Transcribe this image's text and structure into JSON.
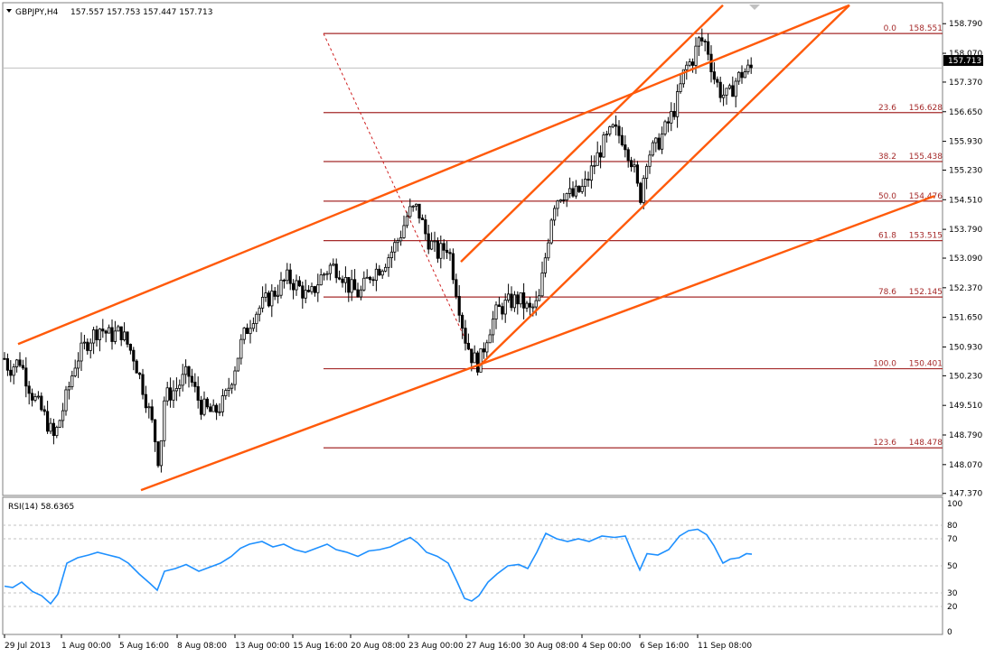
{
  "header": {
    "symbol": "GBPJPY,H4",
    "ohlc": "157.557 157.753 157.447 157.713"
  },
  "chart_data": [
    {
      "type": "candlestick",
      "title": "GBPJPY,H4 157.557 157.753 157.447 157.713",
      "price_scale": [
        "158.790",
        "158.070",
        "157.370",
        "156.650",
        "155.930",
        "155.230",
        "154.510",
        "153.790",
        "153.090",
        "152.370",
        "151.650",
        "150.930",
        "150.230",
        "149.510",
        "148.790",
        "148.070",
        "147.370"
      ],
      "current_price": "157.713",
      "ylim": [
        147.32,
        159.3
      ],
      "x_labels": [
        "29 Jul 2013",
        "1 Aug 00:00",
        "5 Aug 16:00",
        "8 Aug 08:00",
        "13 Aug 00:00",
        "15 Aug 16:00",
        "20 Aug 08:00",
        "23 Aug 00:00",
        "27 Aug 16:00",
        "30 Aug 08:00",
        "4 Sep 00:00",
        "6 Sep 16:00",
        "11 Sep 08:00"
      ],
      "price_path": [
        [
          0,
          150.9
        ],
        [
          10,
          150.4
        ],
        [
          22,
          150.6
        ],
        [
          35,
          149.8
        ],
        [
          48,
          149.3
        ],
        [
          60,
          148.7
        ],
        [
          72,
          149.6
        ],
        [
          84,
          150.6
        ],
        [
          98,
          151.1
        ],
        [
          110,
          151.4
        ],
        [
          122,
          151.2
        ],
        [
          134,
          151.3
        ],
        [
          148,
          150.7
        ],
        [
          160,
          149.8
        ],
        [
          170,
          148.9
        ],
        [
          176,
          148.1
        ],
        [
          182,
          149.7
        ],
        [
          194,
          149.9
        ],
        [
          208,
          150.3
        ],
        [
          222,
          149.5
        ],
        [
          236,
          149.3
        ],
        [
          248,
          149.6
        ],
        [
          258,
          150.3
        ],
        [
          268,
          151.1
        ],
        [
          280,
          151.7
        ],
        [
          292,
          152.0
        ],
        [
          306,
          152.3
        ],
        [
          318,
          152.6
        ],
        [
          330,
          152.4
        ],
        [
          342,
          152.1
        ],
        [
          354,
          152.6
        ],
        [
          366,
          152.9
        ],
        [
          376,
          152.8
        ],
        [
          386,
          152.4
        ],
        [
          398,
          152.2
        ],
        [
          410,
          152.7
        ],
        [
          422,
          152.9
        ],
        [
          432,
          153.2
        ],
        [
          442,
          153.6
        ],
        [
          452,
          154.2
        ],
        [
          462,
          154.3
        ],
        [
          472,
          153.6
        ],
        [
          484,
          153.2
        ],
        [
          496,
          153.4
        ],
        [
          506,
          152.2
        ],
        [
          514,
          151.2
        ],
        [
          522,
          150.7
        ],
        [
          530,
          150.5
        ],
        [
          540,
          151.3
        ],
        [
          550,
          151.8
        ],
        [
          562,
          152.0
        ],
        [
          574,
          152.1
        ],
        [
          586,
          151.8
        ],
        [
          596,
          152.0
        ],
        [
          604,
          153.2
        ],
        [
          612,
          154.4
        ],
        [
          622,
          154.7
        ],
        [
          634,
          154.6
        ],
        [
          646,
          154.8
        ],
        [
          656,
          155.3
        ],
        [
          666,
          155.8
        ],
        [
          678,
          156.2
        ],
        [
          690,
          156.0
        ],
        [
          700,
          155.4
        ],
        [
          708,
          154.5
        ],
        [
          716,
          155.6
        ],
        [
          726,
          155.8
        ],
        [
          738,
          156.3
        ],
        [
          748,
          156.8
        ],
        [
          758,
          157.7
        ],
        [
          766,
          157.9
        ],
        [
          774,
          158.4
        ],
        [
          782,
          158.3
        ],
        [
          790,
          157.5
        ],
        [
          798,
          157.1
        ],
        [
          806,
          157.0
        ],
        [
          814,
          157.4
        ],
        [
          822,
          157.6
        ],
        [
          832,
          157.71
        ]
      ],
      "fibonacci": [
        {
          "level": "0.0",
          "price": "158.551",
          "value": 158.551
        },
        {
          "level": "23.6",
          "price": "156.628",
          "value": 156.628
        },
        {
          "level": "38.2",
          "price": "155.438",
          "value": 155.438
        },
        {
          "level": "50.0",
          "price": "154.476",
          "value": 154.476
        },
        {
          "level": "61.8",
          "price": "153.515",
          "value": 153.515
        },
        {
          "level": "78.6",
          "price": "152.145",
          "value": 152.145
        },
        {
          "level": "100.0",
          "price": "150.401",
          "value": 150.401
        },
        {
          "level": "123.6",
          "price": "148.478",
          "value": 148.478
        }
      ],
      "trendlines": [
        {
          "x1": 20,
          "p1": 151.0,
          "x2": 940,
          "p2": 159.24
        },
        {
          "x1": 156,
          "p1": 147.45,
          "x2": 1034,
          "p2": 154.6
        },
        {
          "x1": 510,
          "p1": 153.0,
          "x2": 800,
          "p2": 159.24
        },
        {
          "x1": 530,
          "p1": 150.46,
          "x2": 940,
          "p2": 159.24
        }
      ],
      "fib_connector": {
        "x1": 358,
        "p1": 158.551,
        "x2": 530,
        "p2": 150.401
      },
      "colors": {
        "candle": "#000000",
        "fib": "#a52a2a",
        "trend": "#ff5a0a",
        "rsi": "#1e90ff",
        "grid": "#c0c0c0"
      }
    },
    {
      "type": "line",
      "title": "RSI(14) 58.6365",
      "series": [
        {
          "name": "RSI(14)",
          "color": "#1e90ff"
        }
      ],
      "ylim": [
        0,
        100
      ],
      "levels": [
        "100",
        "80",
        "70",
        "50",
        "30",
        "20",
        "0"
      ],
      "level_values": [
        100,
        80,
        70,
        50,
        30,
        20,
        0
      ],
      "points": [
        [
          5,
          35
        ],
        [
          14,
          34
        ],
        [
          24,
          38
        ],
        [
          36,
          31
        ],
        [
          46,
          28
        ],
        [
          56,
          22
        ],
        [
          64,
          29
        ],
        [
          74,
          52
        ],
        [
          86,
          56
        ],
        [
          98,
          58
        ],
        [
          108,
          60
        ],
        [
          120,
          58
        ],
        [
          132,
          56
        ],
        [
          142,
          52
        ],
        [
          154,
          44
        ],
        [
          166,
          37
        ],
        [
          174,
          32
        ],
        [
          182,
          46
        ],
        [
          194,
          48
        ],
        [
          206,
          51
        ],
        [
          220,
          46
        ],
        [
          232,
          49
        ],
        [
          244,
          52
        ],
        [
          256,
          57
        ],
        [
          266,
          63
        ],
        [
          276,
          66
        ],
        [
          290,
          68
        ],
        [
          302,
          64
        ],
        [
          314,
          66
        ],
        [
          326,
          62
        ],
        [
          338,
          60
        ],
        [
          350,
          63
        ],
        [
          362,
          66
        ],
        [
          372,
          62
        ],
        [
          384,
          60
        ],
        [
          396,
          57
        ],
        [
          408,
          61
        ],
        [
          420,
          62
        ],
        [
          432,
          64
        ],
        [
          444,
          68
        ],
        [
          454,
          71
        ],
        [
          462,
          67
        ],
        [
          472,
          60
        ],
        [
          484,
          57
        ],
        [
          496,
          52
        ],
        [
          506,
          38
        ],
        [
          514,
          26
        ],
        [
          522,
          24
        ],
        [
          530,
          28
        ],
        [
          540,
          38
        ],
        [
          550,
          44
        ],
        [
          562,
          50
        ],
        [
          574,
          51
        ],
        [
          584,
          48
        ],
        [
          594,
          60
        ],
        [
          604,
          74
        ],
        [
          616,
          70
        ],
        [
          628,
          68
        ],
        [
          640,
          70
        ],
        [
          652,
          68
        ],
        [
          666,
          72
        ],
        [
          680,
          71
        ],
        [
          692,
          72
        ],
        [
          702,
          56
        ],
        [
          708,
          47
        ],
        [
          716,
          59
        ],
        [
          728,
          58
        ],
        [
          740,
          62
        ],
        [
          752,
          72
        ],
        [
          762,
          76
        ],
        [
          772,
          77
        ],
        [
          782,
          73
        ],
        [
          790,
          65
        ],
        [
          800,
          52
        ],
        [
          808,
          55
        ],
        [
          818,
          56
        ],
        [
          826,
          59
        ],
        [
          832,
          58.6
        ]
      ],
      "value_label": "58.6365"
    }
  ]
}
